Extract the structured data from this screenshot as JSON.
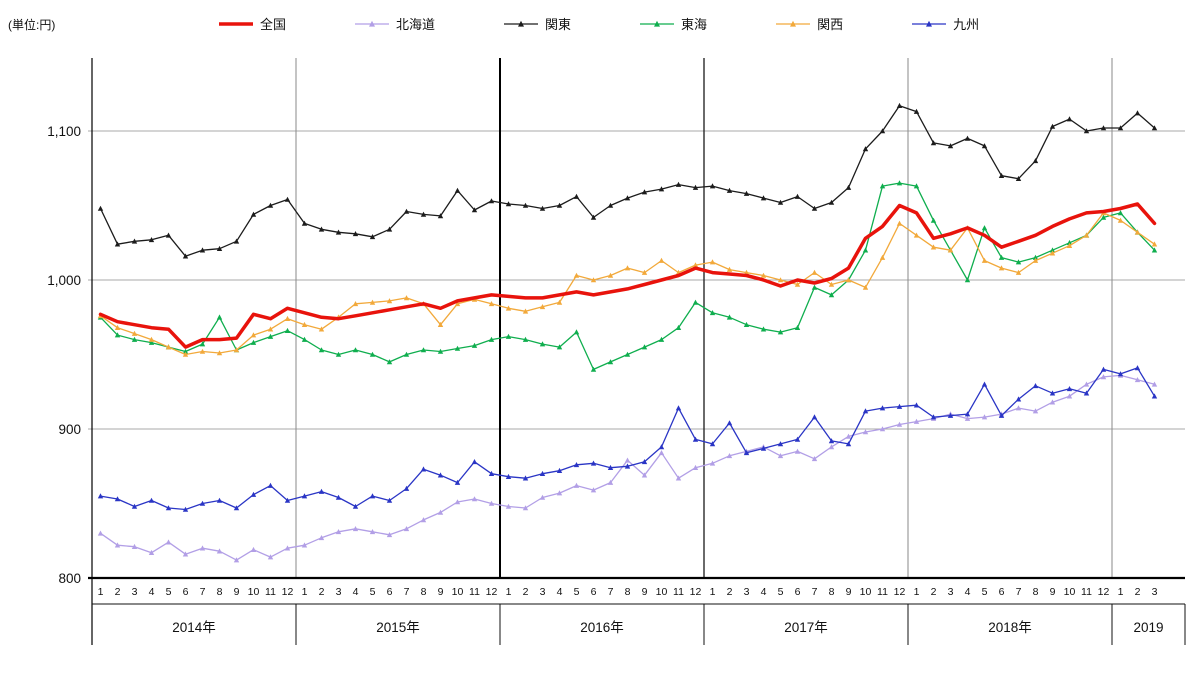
{
  "unit_label": "(単位:円)",
  "chart_data": {
    "type": "line",
    "title": "",
    "legend_position": "top",
    "grid": true,
    "ylim": [
      800,
      1150
    ],
    "y_ticks": [
      {
        "label": "800",
        "value": 800
      },
      {
        "label": "900",
        "value": 900
      },
      {
        "label": "1,000",
        "value": 1000
      },
      {
        "label": "1,100",
        "value": 1100
      }
    ],
    "years": [
      {
        "label": "2014年",
        "month_labels": [
          "1",
          "2",
          "3",
          "4",
          "5",
          "6",
          "7",
          "8",
          "9",
          "10",
          "11",
          "12"
        ]
      },
      {
        "label": "2015年",
        "month_labels": [
          "1",
          "2",
          "3",
          "4",
          "5",
          "6",
          "7",
          "8",
          "9",
          "10",
          "11",
          "12"
        ]
      },
      {
        "label": "2016年",
        "month_labels": [
          "1",
          "2",
          "3",
          "4",
          "5",
          "6",
          "7",
          "8",
          "9",
          "10",
          "11",
          "12"
        ]
      },
      {
        "label": "2017年",
        "month_labels": [
          "1",
          "2",
          "3",
          "4",
          "5",
          "6",
          "7",
          "8",
          "9",
          "10",
          "11",
          "12"
        ]
      },
      {
        "label": "2018年",
        "month_labels": [
          "1",
          "2",
          "3",
          "4",
          "5",
          "6",
          "7",
          "8",
          "9",
          "10",
          "11",
          "12"
        ]
      },
      {
        "label": "2019",
        "month_labels": [
          "1",
          "2",
          "3"
        ]
      }
    ],
    "series": [
      {
        "name": "全国",
        "key": "national",
        "color": "#e8130c",
        "width": 3.5,
        "marker": "none",
        "values": [
          977,
          972,
          970,
          968,
          967,
          955,
          960,
          960,
          961,
          977,
          974,
          981,
          978,
          975,
          974,
          976,
          978,
          980,
          982,
          984,
          981,
          986,
          988,
          990,
          989,
          988,
          988,
          990,
          992,
          990,
          992,
          994,
          997,
          1000,
          1003,
          1008,
          1005,
          1004,
          1003,
          1000,
          996,
          1000,
          998,
          1001,
          1008,
          1028,
          1036,
          1050,
          1045,
          1028,
          1031,
          1035,
          1030,
          1022,
          1026,
          1030,
          1036,
          1041,
          1045,
          1046,
          1048,
          1051,
          1038
        ]
      },
      {
        "name": "北海道",
        "key": "hokkaido",
        "color": "#b29fe6",
        "width": 1.3,
        "marker": "triangle",
        "values": [
          830,
          822,
          821,
          817,
          824,
          816,
          820,
          818,
          812,
          819,
          814,
          820,
          822,
          827,
          831,
          833,
          831,
          829,
          833,
          839,
          844,
          851,
          853,
          850,
          848,
          847,
          854,
          857,
          862,
          859,
          864,
          879,
          869,
          884,
          867,
          874,
          877,
          882,
          885,
          888,
          882,
          885,
          880,
          888,
          895,
          898,
          900,
          903,
          905,
          907,
          910,
          907,
          908,
          910,
          914,
          912,
          918,
          922,
          930,
          935,
          936,
          933,
          930
        ]
      },
      {
        "name": "関東",
        "key": "kanto",
        "color": "#1c1c1c",
        "width": 1.3,
        "marker": "triangle",
        "values": [
          1048,
          1024,
          1026,
          1027,
          1030,
          1016,
          1020,
          1021,
          1026,
          1044,
          1050,
          1054,
          1038,
          1034,
          1032,
          1031,
          1029,
          1034,
          1046,
          1044,
          1043,
          1060,
          1047,
          1053,
          1051,
          1050,
          1048,
          1050,
          1056,
          1042,
          1050,
          1055,
          1059,
          1061,
          1064,
          1062,
          1063,
          1060,
          1058,
          1055,
          1052,
          1056,
          1048,
          1052,
          1062,
          1088,
          1100,
          1117,
          1113,
          1092,
          1090,
          1095,
          1090,
          1070,
          1068,
          1080,
          1103,
          1108,
          1100,
          1102,
          1102,
          1112,
          1102
        ]
      },
      {
        "name": "東海",
        "key": "tokai",
        "color": "#0fae4e",
        "width": 1.3,
        "marker": "triangle",
        "values": [
          975,
          963,
          960,
          958,
          955,
          952,
          957,
          975,
          953,
          958,
          962,
          966,
          960,
          953,
          950,
          953,
          950,
          945,
          950,
          953,
          952,
          954,
          956,
          960,
          962,
          960,
          957,
          955,
          965,
          940,
          945,
          950,
          955,
          960,
          968,
          985,
          978,
          975,
          970,
          967,
          965,
          968,
          995,
          990,
          1000,
          1020,
          1063,
          1065,
          1063,
          1040,
          1020,
          1000,
          1035,
          1015,
          1012,
          1015,
          1020,
          1025,
          1030,
          1042,
          1045,
          1032,
          1020
        ]
      },
      {
        "name": "関西",
        "key": "kansai",
        "color": "#f2a93b",
        "width": 1.3,
        "marker": "triangle",
        "values": [
          976,
          968,
          964,
          960,
          955,
          950,
          952,
          951,
          953,
          963,
          967,
          974,
          970,
          967,
          975,
          984,
          985,
          986,
          988,
          984,
          970,
          984,
          987,
          984,
          981,
          979,
          982,
          985,
          1003,
          1000,
          1003,
          1008,
          1005,
          1013,
          1005,
          1010,
          1012,
          1007,
          1005,
          1003,
          1000,
          997,
          1005,
          997,
          1000,
          995,
          1015,
          1038,
          1030,
          1022,
          1020,
          1035,
          1013,
          1008,
          1005,
          1013,
          1018,
          1023,
          1030,
          1045,
          1040,
          1032,
          1024
        ]
      },
      {
        "name": "九州",
        "key": "kyushu",
        "color": "#2a35c5",
        "width": 1.3,
        "marker": "triangle",
        "values": [
          855,
          853,
          848,
          852,
          847,
          846,
          850,
          852,
          847,
          856,
          862,
          852,
          855,
          858,
          854,
          848,
          855,
          852,
          860,
          873,
          869,
          864,
          878,
          870,
          868,
          867,
          870,
          872,
          876,
          877,
          874,
          875,
          878,
          888,
          914,
          893,
          890,
          904,
          884,
          887,
          890,
          893,
          908,
          892,
          890,
          912,
          914,
          915,
          916,
          908,
          909,
          910,
          930,
          909,
          920,
          929,
          924,
          927,
          924,
          940,
          937,
          941,
          922
        ]
      }
    ]
  }
}
